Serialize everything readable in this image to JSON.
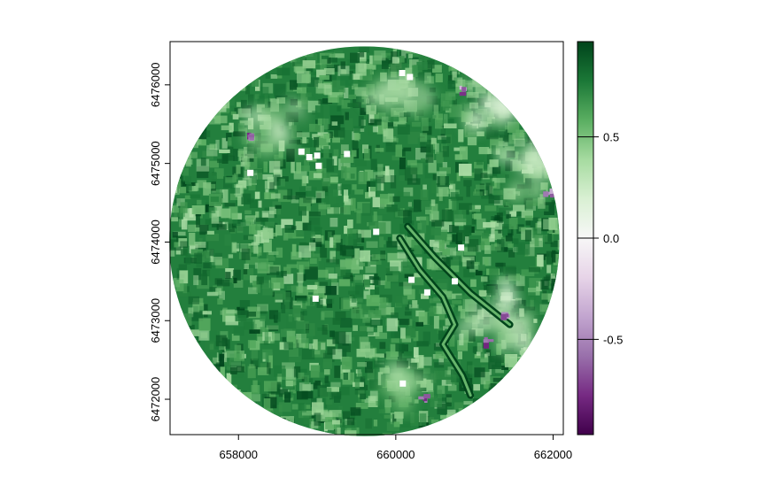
{
  "chart_data": {
    "type": "heatmap",
    "title": "",
    "xlabel": "",
    "ylabel": "",
    "xlim": [
      657130,
      662130
    ],
    "ylim": [
      6471550,
      6476550
    ],
    "x_ticks": [
      658000,
      660000,
      662000
    ],
    "x_tick_labels": [
      "658000",
      "660000",
      "662000"
    ],
    "y_ticks": [
      6472000,
      6473000,
      6474000,
      6475000,
      6476000
    ],
    "y_tick_labels": [
      "6472000",
      "6473000",
      "6474000",
      "6475000",
      "6476000"
    ],
    "mask": {
      "shape": "circle",
      "center": [
        659600,
        6474010
      ],
      "radius": 2480
    },
    "colorbar": {
      "range": [
        -0.97,
        0.97
      ],
      "ticks": [
        -0.5,
        0.0,
        0.5
      ],
      "tick_labels": [
        "-0.5",
        "0.0",
        "0.5"
      ],
      "colors": [
        "#40004b",
        "#762a83",
        "#9970ab",
        "#c2a5cf",
        "#e7d4e8",
        "#f7f7f7",
        "#d9f0d3",
        "#a6dba0",
        "#5aae61",
        "#1b7837",
        "#00441b"
      ]
    },
    "value_summary": {
      "dominant": 0.75,
      "min": -0.97,
      "max": 0.97
    },
    "features": [
      {
        "name": "river",
        "path": [
          [
            660050,
            6474050
          ],
          [
            660300,
            6473650
          ],
          [
            660600,
            6473300
          ],
          [
            660750,
            6472950
          ],
          [
            660600,
            6472700
          ],
          [
            660850,
            6472300
          ],
          [
            660950,
            6472050
          ]
        ]
      },
      {
        "name": "canal",
        "path": [
          [
            660150,
            6474200
          ],
          [
            660500,
            6473800
          ],
          [
            660950,
            6473350
          ],
          [
            661450,
            6472950
          ]
        ]
      }
    ],
    "low_value_zones": [
      {
        "center": [
          661400,
          6475800
        ],
        "radius": 500,
        "value": 0.1
      },
      {
        "center": [
          661800,
          6474950
        ],
        "radius": 450,
        "value": 0.15
      },
      {
        "center": [
          658500,
          6475450
        ],
        "radius": 380,
        "value": 0.2
      },
      {
        "center": [
          661300,
          6473000
        ],
        "radius": 500,
        "value": 0.15
      },
      {
        "center": [
          660050,
          6475950
        ],
        "radius": 380,
        "value": 0.25
      },
      {
        "center": [
          660100,
          6472150
        ],
        "radius": 280,
        "value": 0.3
      }
    ],
    "negative_spots": [
      [
        658150,
        6475350
      ],
      [
        660800,
        6475950
      ],
      [
        661650,
        6475600
      ],
      [
        661900,
        6474650
      ],
      [
        661350,
        6473100
      ],
      [
        661150,
        6472750
      ],
      [
        660300,
        6472050
      ]
    ],
    "nodata_squares": [
      [
        660080,
        6476150
      ],
      [
        660180,
        6476100
      ],
      [
        659380,
        6475120
      ],
      [
        658900,
        6475080
      ],
      [
        658150,
        6474880
      ],
      [
        659020,
        6474970
      ],
      [
        659750,
        6474130
      ],
      [
        660830,
        6473930
      ],
      [
        660200,
        6473520
      ],
      [
        660400,
        6473360
      ],
      [
        660750,
        6473500
      ],
      [
        658980,
        6473280
      ],
      [
        660090,
        6472200
      ],
      [
        659000,
        6475100
      ],
      [
        658800,
        6475150
      ]
    ]
  }
}
